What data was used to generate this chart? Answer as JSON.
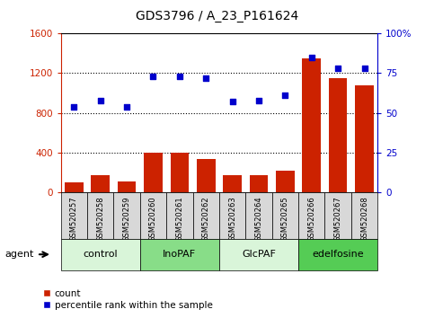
{
  "title": "GDS3796 / A_23_P161624",
  "samples": [
    "GSM520257",
    "GSM520258",
    "GSM520259",
    "GSM520260",
    "GSM520261",
    "GSM520262",
    "GSM520263",
    "GSM520264",
    "GSM520265",
    "GSM520266",
    "GSM520267",
    "GSM520268"
  ],
  "counts": [
    100,
    170,
    110,
    400,
    400,
    340,
    175,
    175,
    220,
    1350,
    1150,
    1080
  ],
  "percentiles": [
    54,
    58,
    54,
    73,
    73,
    72,
    57,
    58,
    61,
    85,
    78,
    78
  ],
  "groups": [
    {
      "label": "control",
      "start": 0,
      "end": 3,
      "color": "#d9f5d9"
    },
    {
      "label": "InoPAF",
      "start": 3,
      "end": 6,
      "color": "#88dd88"
    },
    {
      "label": "GlcPAF",
      "start": 6,
      "end": 9,
      "color": "#d9f5d9"
    },
    {
      "label": "edelfosine",
      "start": 9,
      "end": 12,
      "color": "#55cc55"
    }
  ],
  "bar_color": "#cc2200",
  "dot_color": "#0000cc",
  "left_axis_color": "#cc2200",
  "right_axis_color": "#0000cc",
  "ylim_left": [
    0,
    1600
  ],
  "ylim_right": [
    0,
    100
  ],
  "yticks_left": [
    0,
    400,
    800,
    1200,
    1600
  ],
  "yticks_right": [
    0,
    25,
    50,
    75,
    100
  ],
  "yticklabels_right": [
    "0",
    "25",
    "50",
    "75",
    "100%"
  ],
  "sample_bg_color": "#d8d8d8",
  "legend_count_label": "count",
  "legend_pct_label": "percentile rank within the sample",
  "agent_label": "agent"
}
